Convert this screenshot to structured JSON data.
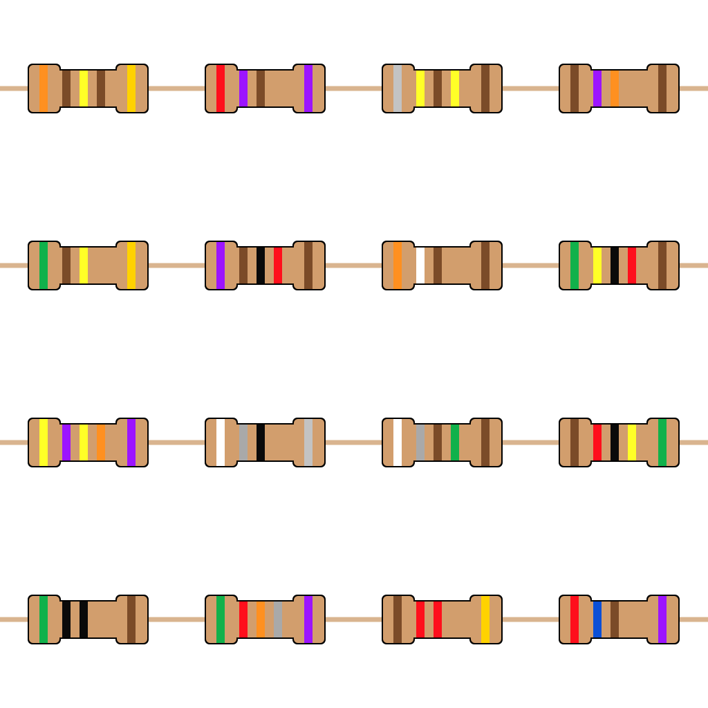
{
  "colors": {
    "background": "#ffffff",
    "wire": "#d9b48f",
    "body": "#d29e6d",
    "outline": "#000000",
    "black": "#0a0a0a",
    "brown": "#7b4b28",
    "red": "#ff0f1c",
    "orange": "#ff9020",
    "yellow": "#ffff27",
    "green": "#11b14b",
    "blue": "#0b4fd6",
    "violet": "#9c14ff",
    "grey": "#a9a9a9",
    "white": "#ffffff",
    "gold": "#ffd200",
    "silver": "#c3c3c3"
  },
  "resistors": [
    {
      "bands": [
        "orange",
        "brown",
        "yellow",
        "brown"
      ],
      "tolerance": "gold"
    },
    {
      "bands": [
        "red",
        "violet",
        "brown"
      ],
      "tolerance": "violet"
    },
    {
      "bands": [
        "silver",
        "yellow",
        "brown",
        "yellow"
      ],
      "tolerance": "brown"
    },
    {
      "bands": [
        "brown",
        "violet",
        "orange"
      ],
      "tolerance": "brown"
    },
    {
      "bands": [
        "green",
        "brown",
        "yellow"
      ],
      "tolerance": "gold"
    },
    {
      "bands": [
        "violet",
        "brown",
        "black",
        "red"
      ],
      "tolerance": "brown"
    },
    {
      "bands": [
        "orange",
        "white",
        "brown"
      ],
      "tolerance": "brown"
    },
    {
      "bands": [
        "green",
        "yellow",
        "black",
        "red"
      ],
      "tolerance": "brown"
    },
    {
      "bands": [
        "yellow",
        "violet",
        "yellow",
        "orange"
      ],
      "tolerance": "violet"
    },
    {
      "bands": [
        "white",
        "grey",
        "black"
      ],
      "tolerance": "silver"
    },
    {
      "bands": [
        "white",
        "grey",
        "brown",
        "green"
      ],
      "tolerance": "brown"
    },
    {
      "bands": [
        "brown",
        "red",
        "black",
        "yellow"
      ],
      "tolerance": "green"
    },
    {
      "bands": [
        "green",
        "black",
        "black"
      ],
      "tolerance": "brown"
    },
    {
      "bands": [
        "green",
        "red",
        "orange",
        "grey"
      ],
      "tolerance": "violet"
    },
    {
      "bands": [
        "brown",
        "red",
        "red"
      ],
      "tolerance": "gold"
    },
    {
      "bands": [
        "red",
        "blue",
        "brown"
      ],
      "tolerance": "violet"
    }
  ]
}
